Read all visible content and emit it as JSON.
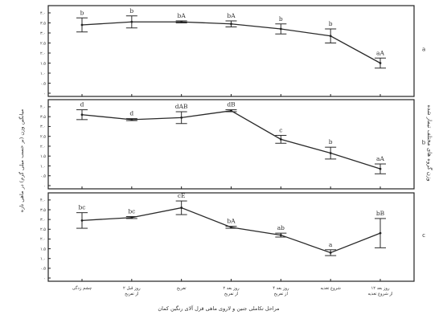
{
  "chart_data": {
    "type": "line",
    "xlabel": "مراحل تکاملی جنین و لاروی ماهی قزل آلای رنگین کمان",
    "ylabel": "میانگین وزن (بر حسب میلی گرم) در ماهی تازه",
    "side_label": "وزن گروه های مختلف تیمار شده",
    "categories": [
      "چشم زدگی",
      "۲ روز قبل از تفریخ",
      "تفریخ",
      "۲ روز بعد از تفریخ",
      "۴ روز بعد از تفریخ",
      "شروع تغذیه",
      "۱۲ روز بعد از شروع تغذیه"
    ],
    "y_ticks": [
      "۰",
      "۰.۵",
      "۱.۰",
      "۱.۵",
      "۲.۰",
      "۲.۵",
      "۳.۰",
      "۳.۵",
      "۴.۰"
    ],
    "ylim": [
      0,
      4.2
    ],
    "panels": [
      {
        "name": "a",
        "values": [
          3.4,
          3.55,
          3.55,
          3.45,
          3.2,
          2.85,
          1.5
        ],
        "errors": [
          0.35,
          0.3,
          0.05,
          0.15,
          0.25,
          0.35,
          0.25
        ],
        "labels": [
          "b",
          "b",
          "bA",
          "bA",
          "b",
          "b",
          "aA"
        ]
      },
      {
        "name": "b",
        "values": [
          3.6,
          3.35,
          3.45,
          3.8,
          2.35,
          1.65,
          0.85
        ],
        "errors": [
          0.25,
          0.05,
          0.3,
          0.05,
          0.2,
          0.3,
          0.25
        ],
        "labels": [
          "d",
          "d",
          "dAB",
          "dB",
          "c",
          "b",
          "aA"
        ]
      },
      {
        "name": "c",
        "values": [
          2.95,
          3.1,
          3.6,
          2.6,
          2.2,
          1.3,
          2.3
        ],
        "errors": [
          0.4,
          0.05,
          0.35,
          0.05,
          0.1,
          0.15,
          0.75
        ],
        "labels": [
          "bc",
          "bc",
          "cE",
          "bA",
          "ab",
          "a",
          "bB"
        ]
      }
    ],
    "grid": false,
    "legend": "none"
  },
  "panel_labels": [
    "a",
    "b",
    "c"
  ]
}
